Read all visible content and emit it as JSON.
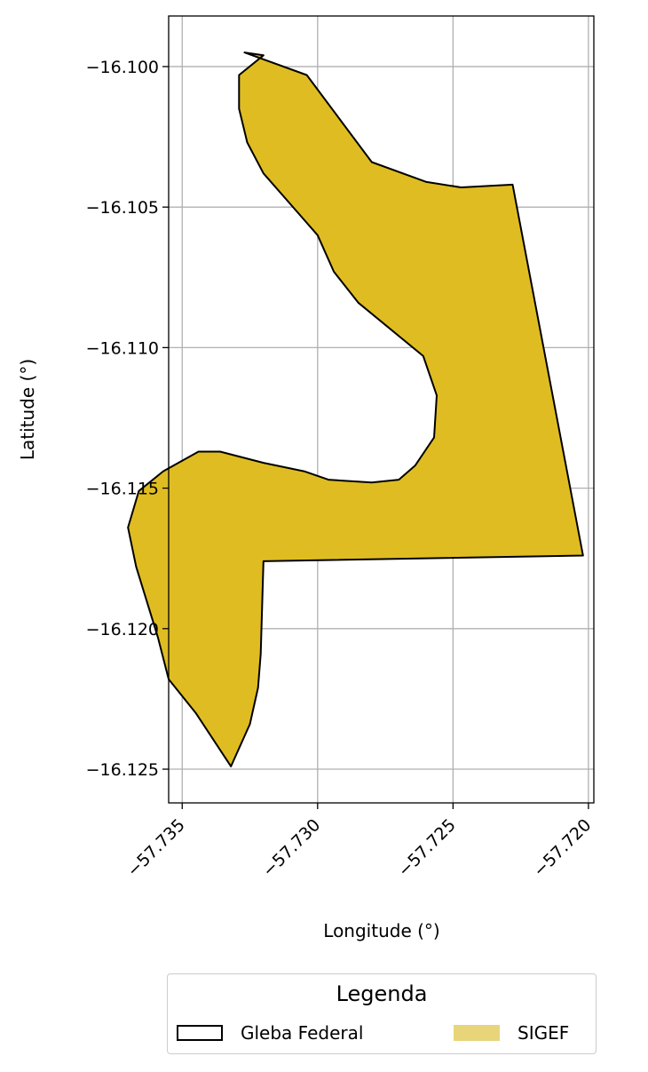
{
  "chart_data": {
    "type": "map",
    "xlabel": "Longitude (°)",
    "ylabel": "Latitude (°)",
    "xlim": [
      -57.7355,
      -57.7198
    ],
    "ylim": [
      -16.1262,
      -16.0982
    ],
    "xticks": [
      -57.735,
      -57.73,
      -57.725,
      -57.72
    ],
    "xtick_labels": [
      "−57.735",
      "−57.730",
      "−57.725",
      "−57.720"
    ],
    "yticks": [
      -16.1,
      -16.105,
      -16.11,
      -16.115,
      -16.12,
      -16.125
    ],
    "ytick_labels": [
      "−16.100",
      "−16.105",
      "−16.110",
      "−16.115",
      "−16.120",
      "−16.125"
    ],
    "grid": true,
    "legend": {
      "title": "Legenda",
      "placement": "bottom-center",
      "entries": [
        {
          "label": "Gleba Federal",
          "style": "outline",
          "color": "#000000"
        },
        {
          "label": "SIGEF",
          "style": "fill",
          "color": "#e8d57a"
        }
      ]
    },
    "polygon": {
      "name": "SIGEF",
      "fill": "#dfbd22",
      "stroke": "#000000",
      "coordinates": [
        [
          -57.7327,
          -16.0995
        ],
        [
          -57.7304,
          -16.1003
        ],
        [
          -57.728,
          -16.1034
        ],
        [
          -57.726,
          -16.1041
        ],
        [
          -57.7247,
          -16.1043
        ],
        [
          -57.7228,
          -16.1042
        ],
        [
          -57.7202,
          -16.1174
        ],
        [
          -57.732,
          -16.1176
        ],
        [
          -57.7321,
          -16.1209
        ],
        [
          -57.7322,
          -16.1221
        ],
        [
          -57.7325,
          -16.1234
        ],
        [
          -57.7332,
          -16.1249
        ],
        [
          -57.7345,
          -16.123
        ],
        [
          -57.7355,
          -16.1218
        ],
        [
          -57.7359,
          -16.1203
        ],
        [
          -57.7367,
          -16.1178
        ],
        [
          -57.737,
          -16.1164
        ],
        [
          -57.7366,
          -16.1151
        ],
        [
          -57.7357,
          -16.1144
        ],
        [
          -57.7344,
          -16.1137
        ],
        [
          -57.7336,
          -16.1137
        ],
        [
          -57.732,
          -16.1141
        ],
        [
          -57.7305,
          -16.1144
        ],
        [
          -57.7296,
          -16.1147
        ],
        [
          -57.728,
          -16.1148
        ],
        [
          -57.727,
          -16.1147
        ],
        [
          -57.7264,
          -16.1142
        ],
        [
          -57.7257,
          -16.1132
        ],
        [
          -57.7256,
          -16.1117
        ],
        [
          -57.7261,
          -16.1103
        ],
        [
          -57.7285,
          -16.1084
        ],
        [
          -57.7294,
          -16.1073
        ],
        [
          -57.73,
          -16.106
        ],
        [
          -57.731,
          -16.1049
        ],
        [
          -57.732,
          -16.1038
        ],
        [
          -57.7326,
          -16.1027
        ],
        [
          -57.7329,
          -16.1015
        ],
        [
          -57.7329,
          -16.1003
        ],
        [
          -57.732,
          -16.0996
        ]
      ]
    }
  }
}
